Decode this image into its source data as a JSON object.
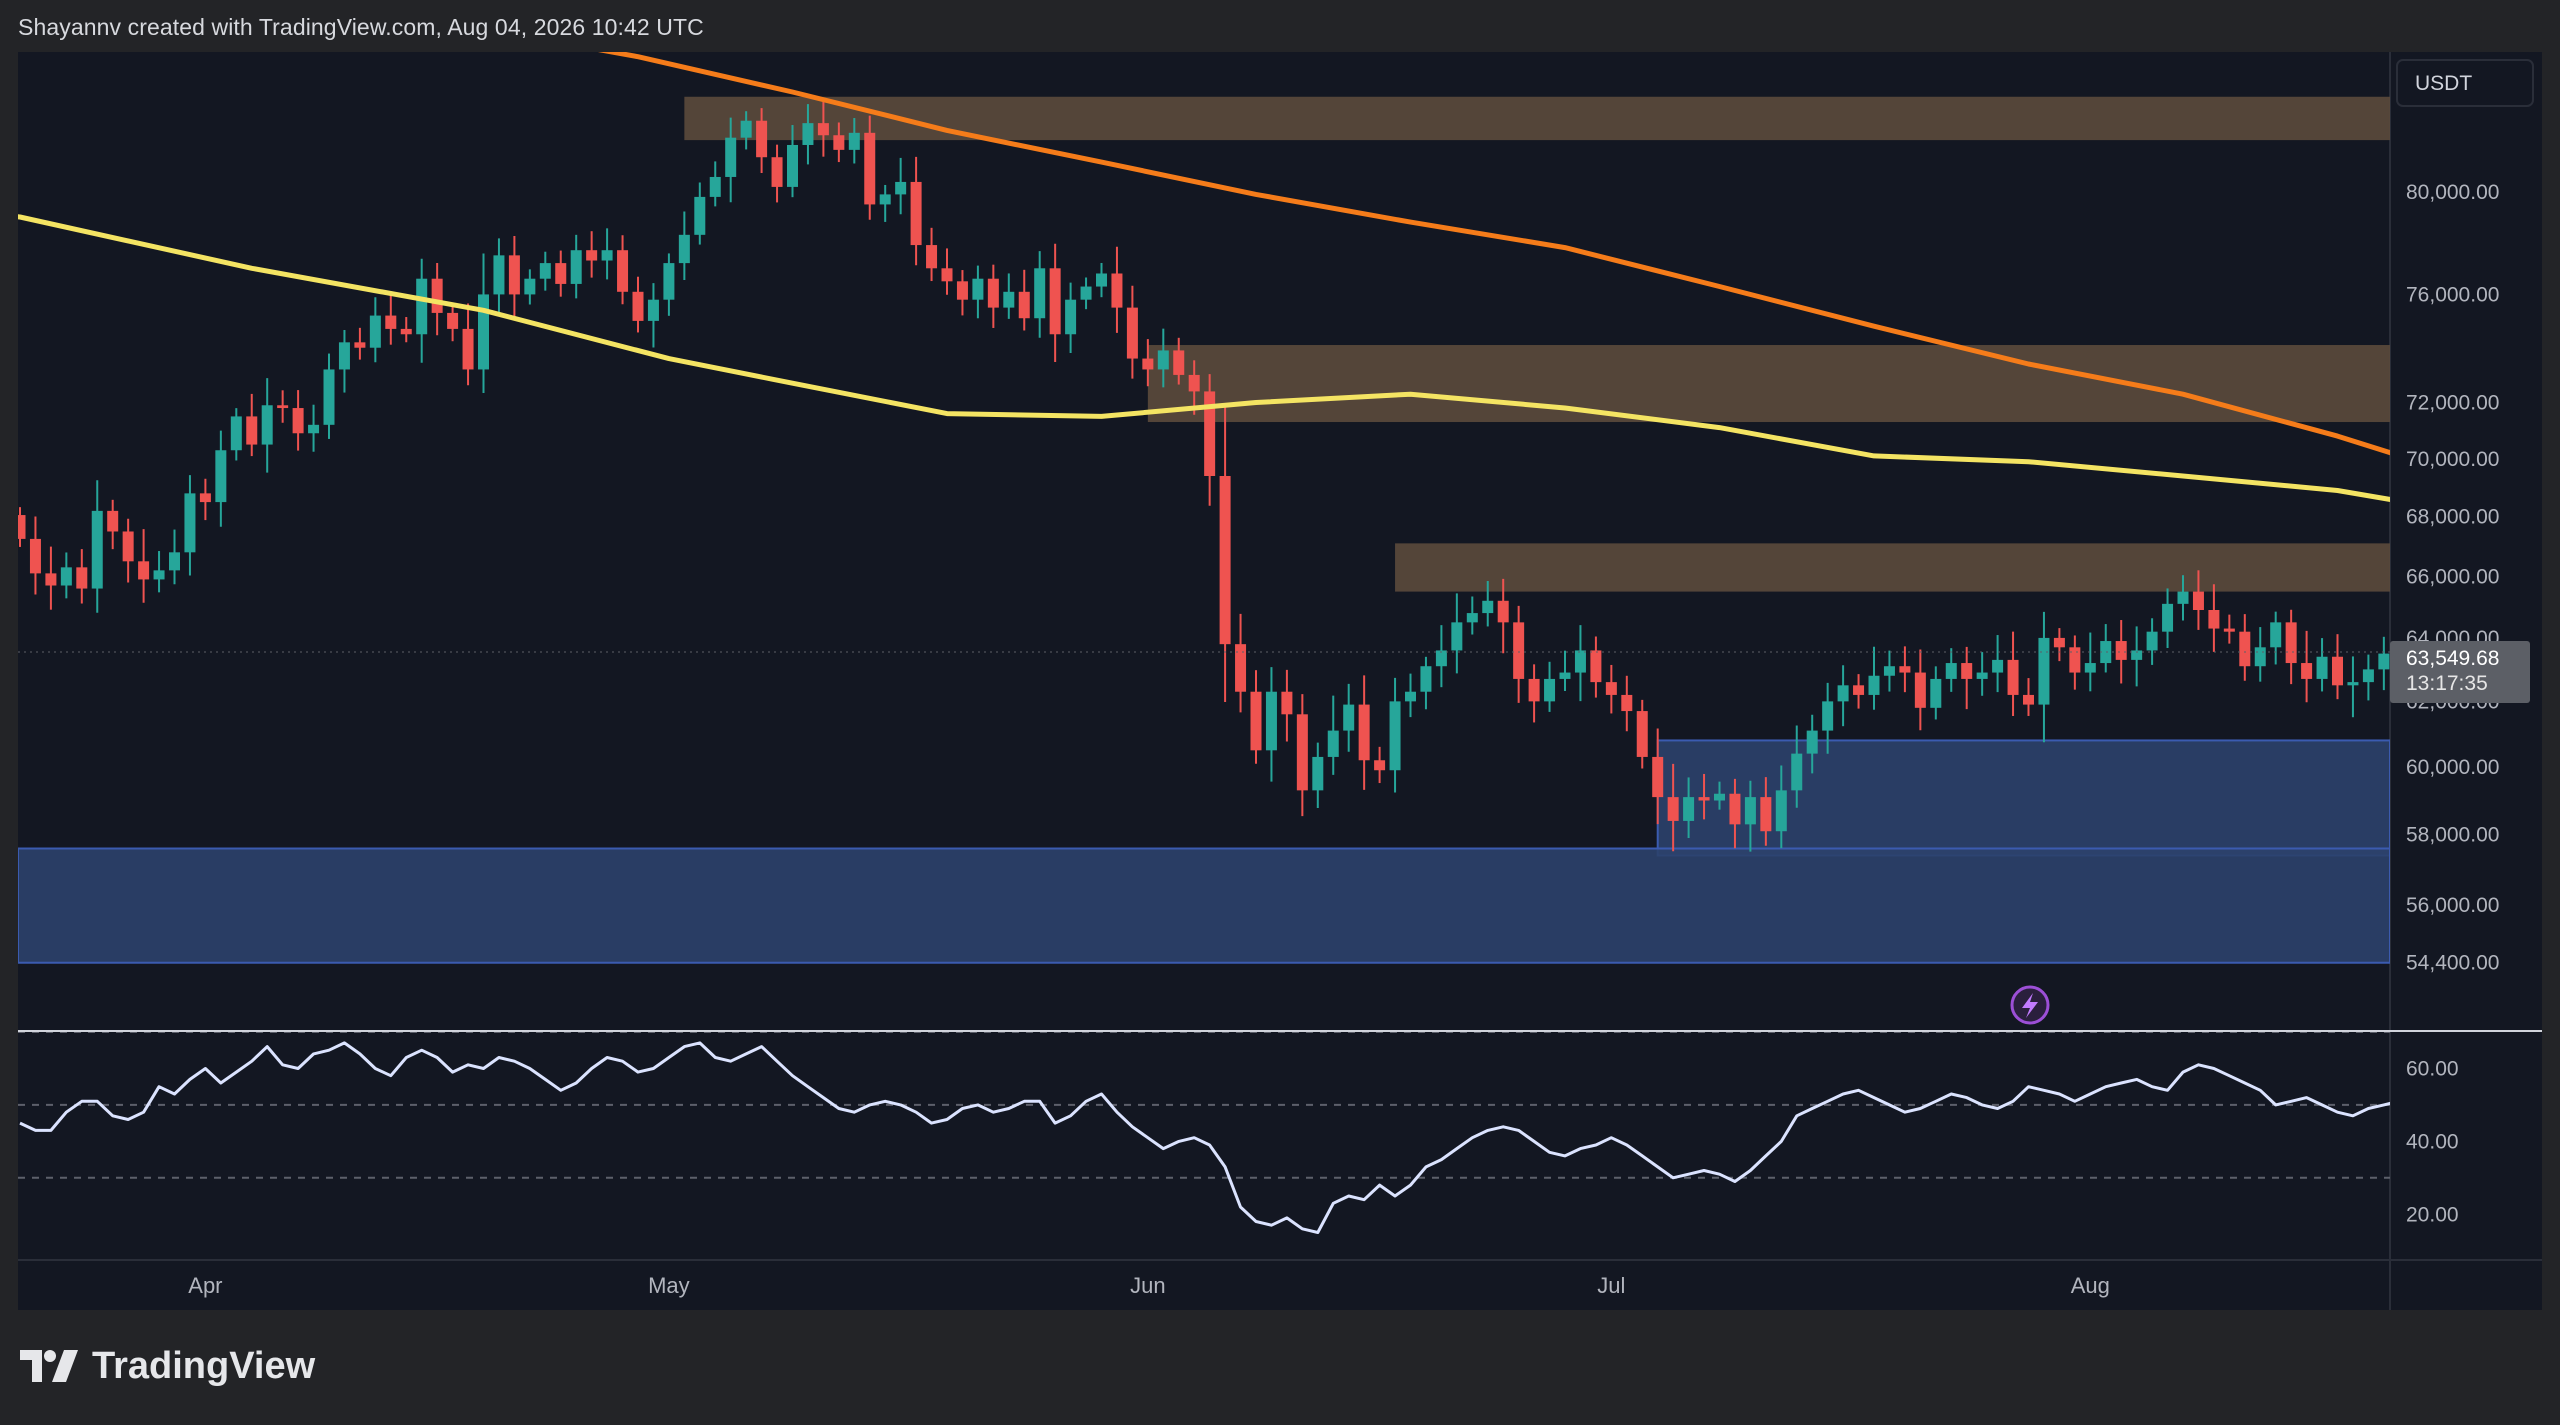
{
  "header": {
    "text": "Shayannv created with TradingView.com, Aug 04, 2026 10:42 UTC"
  },
  "brand": {
    "name": "TradingView"
  },
  "colors": {
    "background": "#131722",
    "page": "#232427",
    "up_candle": "#26a69a",
    "down_candle": "#ef5350",
    "ma_100": "#f4e463",
    "ma_200": "#f57c1a",
    "supply_zone": "#5a4a3c",
    "demand_zone": "#2c416c",
    "rsi_line": "#dbe3ff"
  },
  "chart_data": [
    {
      "type": "candlestick",
      "title": "",
      "currency": "USDT",
      "y_ticks": [
        "80,000.00",
        "76,000.00",
        "72,000.00",
        "70,000.00",
        "68,000.00",
        "66,000.00",
        "64,000.00",
        "62,000.00",
        "60,000.00",
        "58,000.00",
        "56,000.00",
        "54,400.00"
      ],
      "x_ticks": [
        "Apr",
        "May",
        "Jun",
        "Jul",
        "Aug"
      ],
      "last_price": "63,549.68",
      "countdown": "13:17:35",
      "ylim": [
        52600,
        85800
      ],
      "scale": "log",
      "start_date": "2026-03-20",
      "closes": [
        67250,
        66100,
        65700,
        66300,
        65600,
        68200,
        67500,
        66500,
        65900,
        66200,
        66800,
        68800,
        68500,
        70300,
        71500,
        70500,
        71900,
        71800,
        70900,
        71200,
        73200,
        74200,
        74000,
        75200,
        74700,
        74500,
        76600,
        75300,
        74700,
        73200,
        76000,
        77500,
        76000,
        76600,
        77200,
        76400,
        77700,
        77300,
        77700,
        76100,
        75000,
        75800,
        77200,
        78300,
        79800,
        80600,
        82200,
        82900,
        81400,
        80200,
        81900,
        82800,
        82300,
        81700,
        82400,
        79500,
        79900,
        80400,
        77900,
        77000,
        76500,
        75800,
        76600,
        75500,
        76100,
        75100,
        77000,
        74500,
        75800,
        76300,
        76800,
        75500,
        73600,
        73200,
        73900,
        73000,
        72400,
        69400,
        63800,
        62300,
        60500,
        62300,
        61600,
        59300,
        60300,
        61100,
        61900,
        60200,
        59900,
        62000,
        62300,
        63100,
        63600,
        64500,
        64800,
        65200,
        64500,
        62700,
        62000,
        62700,
        62900,
        63600,
        62600,
        62200,
        61700,
        60300,
        59100,
        58400,
        59100,
        59000,
        59200,
        58300,
        59100,
        58100,
        59300,
        60400,
        61100,
        62000,
        62500,
        62200,
        62800,
        63100,
        62900,
        61800,
        62700,
        63200,
        62700,
        62900,
        63300,
        62200,
        61900,
        64000,
        63700,
        62900,
        63200,
        63900,
        63300,
        63600,
        64200,
        65100,
        65500,
        64900,
        64300,
        64200,
        63100,
        63700,
        64500,
        63200,
        62700,
        63400,
        62500,
        62600,
        63000,
        63500,
        63550
      ],
      "ma_100": [
        [
          -5,
          79300
        ],
        [
          0,
          79000
        ],
        [
          15,
          77000
        ],
        [
          30,
          75400
        ],
        [
          42,
          73600
        ],
        [
          50,
          72700
        ],
        [
          60,
          71600
        ],
        [
          70,
          71500
        ],
        [
          80,
          72000
        ],
        [
          90,
          72300
        ],
        [
          100,
          71800
        ],
        [
          110,
          71100
        ],
        [
          120,
          70100
        ],
        [
          130,
          69900
        ],
        [
          140,
          69400
        ],
        [
          150,
          68900
        ],
        [
          160,
          68000
        ]
      ],
      "ma_200": [
        [
          30,
          86800
        ],
        [
          40,
          85600
        ],
        [
          50,
          84100
        ],
        [
          60,
          82500
        ],
        [
          70,
          81200
        ],
        [
          80,
          79900
        ],
        [
          90,
          78800
        ],
        [
          100,
          77800
        ],
        [
          110,
          76300
        ],
        [
          120,
          74800
        ],
        [
          130,
          73400
        ],
        [
          140,
          72300
        ],
        [
          150,
          70800
        ],
        [
          160,
          69100
        ]
      ],
      "supply_zones": [
        {
          "from_day": 43,
          "to_day": 999,
          "low": 82100,
          "high": 83900
        },
        {
          "from_day": 73,
          "to_day": 999,
          "low": 71300,
          "high": 74100
        },
        {
          "from_day": 89,
          "to_day": 999,
          "low": 65500,
          "high": 67100
        }
      ],
      "demand_zones": [
        {
          "from_day": 106,
          "to_day": 999,
          "low": 57400,
          "high": 60800
        },
        {
          "from_day": -20,
          "to_day": 999,
          "low": 54400,
          "high": 57600
        }
      ]
    },
    {
      "type": "line",
      "title": "",
      "y_ticks": [
        "60.00",
        "40.00",
        "20.00"
      ],
      "ylim": [
        8,
        70
      ],
      "bands": [
        70,
        50,
        30
      ],
      "rsi": [
        45,
        43,
        43,
        48,
        51,
        51,
        47,
        46,
        48,
        55,
        53,
        57,
        60,
        56,
        59,
        62,
        66,
        61,
        60,
        64,
        65,
        67,
        64,
        60,
        58,
        63,
        65,
        63,
        59,
        61,
        60,
        63,
        62,
        60,
        57,
        54,
        56,
        60,
        63,
        62,
        59,
        60,
        63,
        66,
        67,
        63,
        62,
        64,
        66,
        62,
        58,
        55,
        52,
        49,
        48,
        50,
        51,
        50,
        48,
        45,
        46,
        49,
        50,
        48,
        49,
        51,
        51,
        45,
        47,
        51,
        53,
        48,
        44,
        41,
        38,
        40,
        41,
        39,
        33,
        22,
        18,
        17,
        19,
        16,
        15,
        23,
        25,
        24,
        28,
        25,
        28,
        33,
        35,
        38,
        41,
        43,
        44,
        43,
        40,
        37,
        36,
        38,
        39,
        41,
        39,
        36,
        33,
        30,
        31,
        32,
        31,
        29,
        32,
        36,
        40,
        47,
        49,
        51,
        53,
        54,
        52,
        50,
        48,
        49,
        51,
        53,
        52,
        50,
        49,
        51,
        55,
        54,
        53,
        51,
        53,
        55,
        56,
        57,
        55,
        54,
        59,
        61,
        60,
        58,
        56,
        54,
        50,
        51,
        52,
        50,
        48,
        47,
        49,
        50,
        51,
        52,
        50,
        48,
        47,
        50,
        51,
        50
      ]
    }
  ]
}
